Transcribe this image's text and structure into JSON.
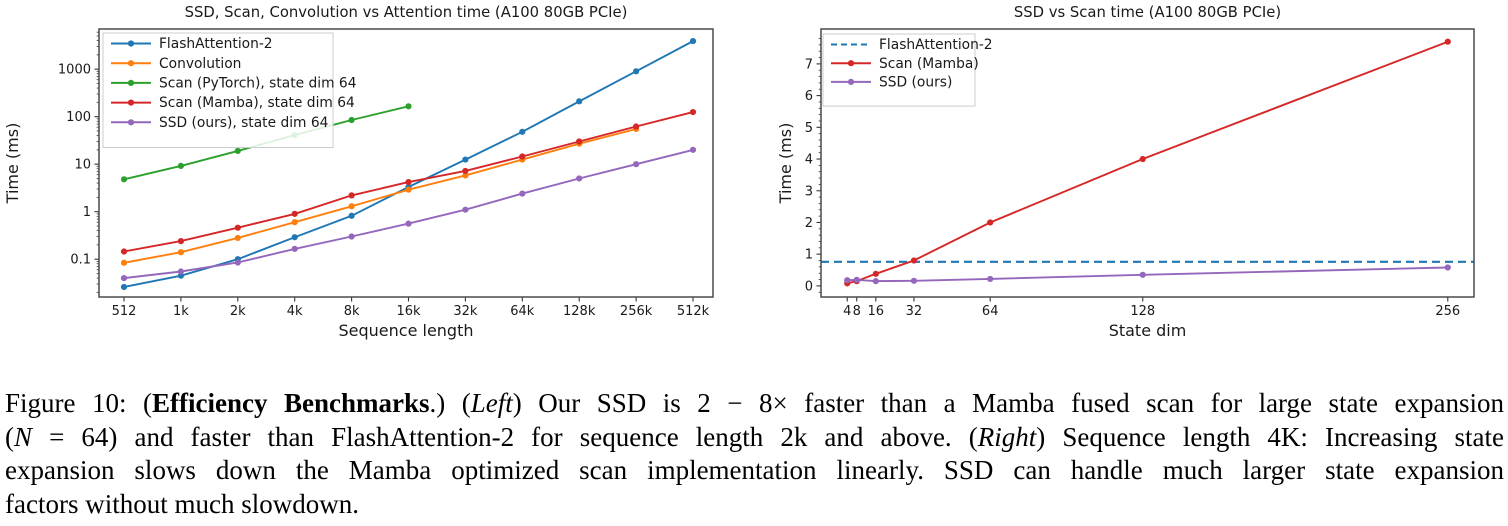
{
  "page": {
    "background": "#ffffff"
  },
  "chart_data": [
    {
      "type": "line",
      "title": "SSD, Scan, Convolution vs Attention time (A100 80GB PCIe)",
      "xlabel": "Sequence length",
      "ylabel": "Time (ms)",
      "x_scale": "categorical",
      "x_tick_labels": [
        "512",
        "1k",
        "2k",
        "4k",
        "8k",
        "16k",
        "32k",
        "64k",
        "128k",
        "256k",
        "512k"
      ],
      "y_scale": "log",
      "ylim": [
        0.016,
        7000
      ],
      "y_tick_values": [
        0.1,
        1,
        10,
        100,
        1000
      ],
      "y_tick_labels": [
        "0.1",
        "1",
        "10",
        "100",
        "1000"
      ],
      "grid": false,
      "legend_position": "upper-left",
      "series": [
        {
          "name": "FlashAttention-2",
          "color": "#1f77b4",
          "style": "solid",
          "marker": true,
          "values": [
            0.026,
            0.045,
            0.1,
            0.29,
            0.82,
            3.3,
            12.5,
            48,
            210,
            900,
            3900
          ]
        },
        {
          "name": "Convolution",
          "color": "#ff7f0e",
          "style": "solid",
          "marker": true,
          "values": [
            0.084,
            0.14,
            0.28,
            0.6,
            1.3,
            2.9,
            5.8,
            12.5,
            27,
            55
          ]
        },
        {
          "name": "Scan (PyTorch), state dim 64",
          "color": "#2ca02c",
          "style": "solid",
          "marker": true,
          "values": [
            4.8,
            9.2,
            19,
            41,
            85,
            165
          ]
        },
        {
          "name": "Scan (Mamba), state dim 64",
          "color": "#d62728",
          "style": "solid",
          "marker": true,
          "values": [
            0.145,
            0.24,
            0.46,
            0.9,
            2.2,
            4.2,
            7.2,
            14.5,
            30,
            62,
            125
          ]
        },
        {
          "name": "SSD (ours), state dim 64",
          "color": "#9467bd",
          "style": "solid",
          "marker": true,
          "values": [
            0.04,
            0.055,
            0.085,
            0.165,
            0.3,
            0.56,
            1.1,
            2.4,
            5.0,
            10,
            20
          ]
        }
      ]
    },
    {
      "type": "line",
      "title": "SSD vs Scan time (A100 80GB PCIe)",
      "xlabel": "State dim",
      "ylabel": "Time (ms)",
      "x_scale": "linear",
      "x": [
        4,
        8,
        16,
        32,
        64,
        128,
        256
      ],
      "x_tick_labels": [
        "4",
        "8",
        "16",
        "32",
        "64",
        "128",
        "256"
      ],
      "xlim": [
        -7,
        267
      ],
      "y_scale": "linear",
      "ylim": [
        -0.35,
        8.1
      ],
      "y_tick_values": [
        0,
        1,
        2,
        3,
        4,
        5,
        6,
        7
      ],
      "y_tick_labels": [
        "0",
        "1",
        "2",
        "3",
        "4",
        "5",
        "6",
        "7"
      ],
      "grid": false,
      "legend_position": "upper-left",
      "series": [
        {
          "name": "FlashAttention-2",
          "color": "#1f77b4",
          "style": "dashed",
          "marker": false,
          "hline": 0.76
        },
        {
          "name": "Scan (Mamba)",
          "color": "#d62728",
          "style": "solid",
          "marker": true,
          "values": [
            0.08,
            0.15,
            0.38,
            0.8,
            2.0,
            4.0,
            7.7
          ]
        },
        {
          "name": "SSD (ours)",
          "color": "#9467bd",
          "style": "solid",
          "marker": true,
          "values": [
            0.18,
            0.19,
            0.15,
            0.16,
            0.22,
            0.35,
            0.58
          ]
        }
      ]
    }
  ],
  "caption": {
    "lines": [
      [
        {
          "text": "Figure 10: (",
          "style": "normal"
        },
        {
          "text": "Efficiency Benchmarks",
          "style": "bold"
        },
        {
          "text": ".) (",
          "style": "normal"
        },
        {
          "text": "Left",
          "style": "italic"
        },
        {
          "text": ") Our SSD is 2 − 8× faster than a Mamba fused scan for large state expansion",
          "style": "normal"
        }
      ],
      [
        {
          "text": "(",
          "style": "normal"
        },
        {
          "text": "N",
          "style": "italic"
        },
        {
          "text": " = 64) and faster than FlashAttention-2 for sequence length 2k and above. (",
          "style": "normal"
        },
        {
          "text": "Right",
          "style": "italic"
        },
        {
          "text": ") Sequence length 4K: Increasing state",
          "style": "normal"
        }
      ],
      [
        {
          "text": "expansion slows down the Mamba optimized scan implementation linearly. SSD can handle much larger state expansion",
          "style": "normal"
        }
      ],
      [
        {
          "text": "factors without much slowdown.",
          "style": "normal"
        }
      ]
    ]
  }
}
